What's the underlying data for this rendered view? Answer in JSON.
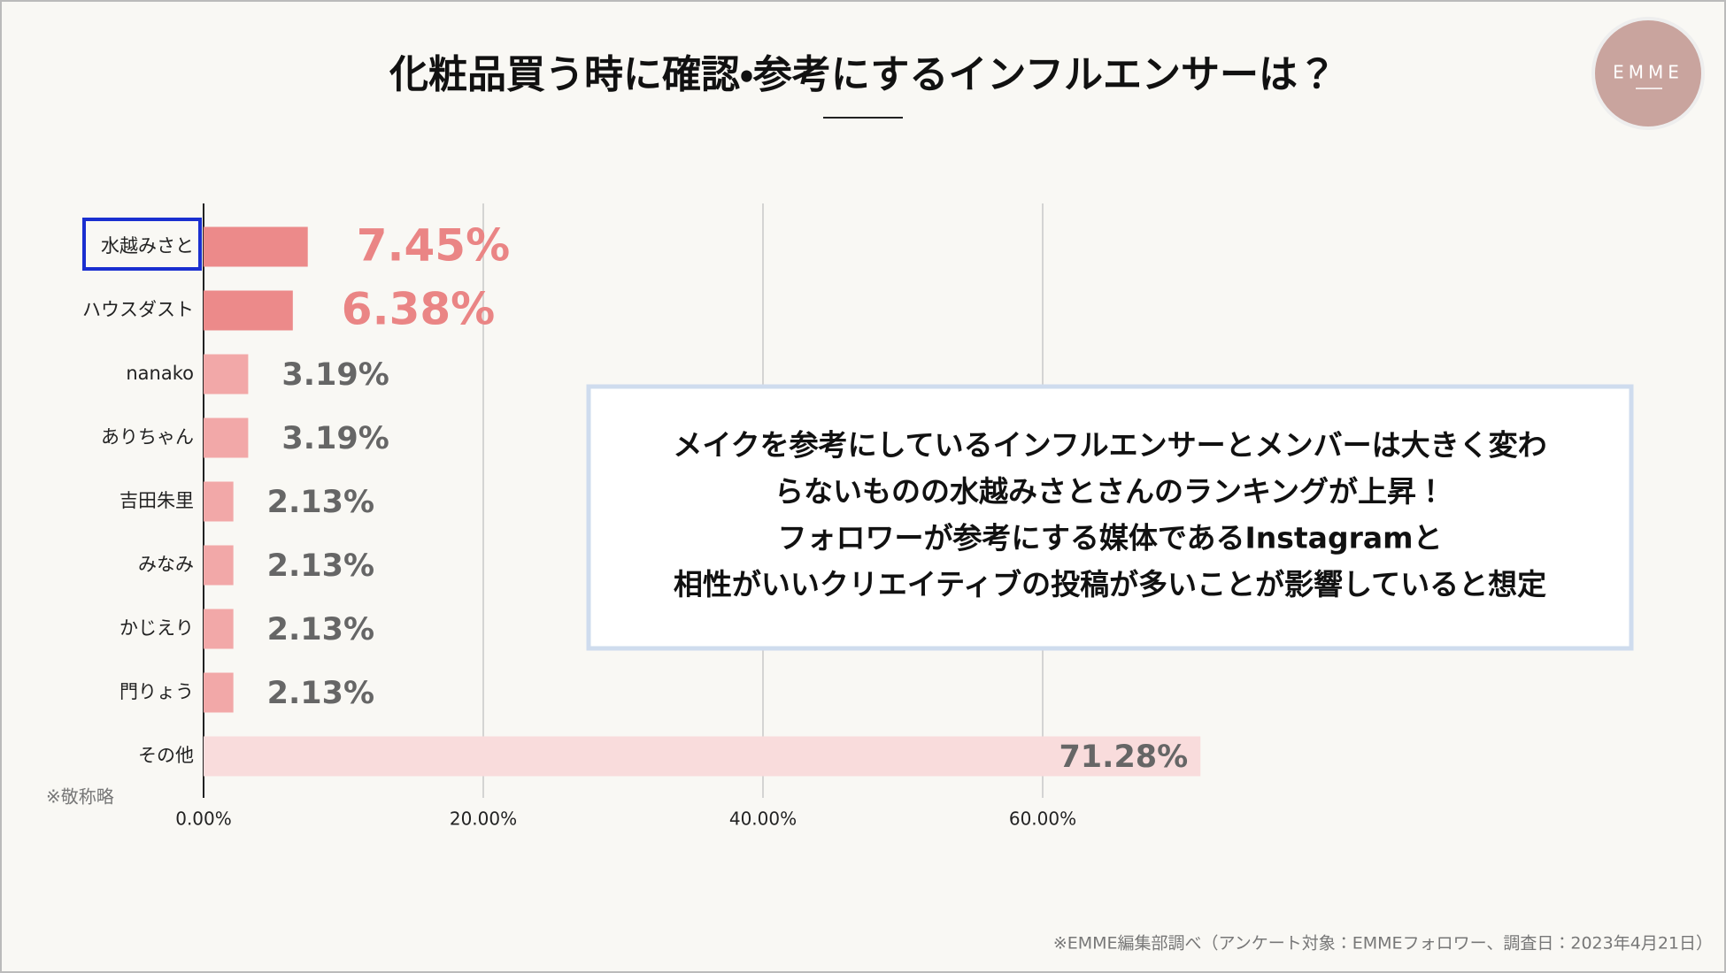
{
  "chart_data": {
    "type": "bar",
    "orientation": "horizontal",
    "title": "化粧品買う時に確認・参考にするインフルエンサーは？",
    "logo": "EMME",
    "categories": [
      "水越みさと",
      "ハウスダスト",
      "nanako",
      "ありちゃん",
      "吉田朱里",
      "みなみ",
      "かじえり",
      "門りょう",
      "その他"
    ],
    "values": [
      7.45,
      6.38,
      3.19,
      3.19,
      2.13,
      2.13,
      2.13,
      2.13,
      71.28
    ],
    "value_labels": [
      "7.45%",
      "6.38%",
      "3.19%",
      "3.19%",
      "2.13%",
      "2.13%",
      "2.13%",
      "2.13%",
      "71.28%"
    ],
    "colors": [
      "#ec8a8a",
      "#ec8a8a",
      "#f2a8a8",
      "#f2a8a8",
      "#f2a8a8",
      "#f2a8a8",
      "#f2a8a8",
      "#f2a8a8",
      "#f9dcdc"
    ],
    "label_colors": [
      "#ea8585",
      "#ea8585",
      "#666666",
      "#666666",
      "#666666",
      "#666666",
      "#666666",
      "#666666",
      "#666666"
    ],
    "xlim": [
      0,
      80
    ],
    "xticks": [
      {
        "value": 0,
        "label": "0.00%"
      },
      {
        "value": 20,
        "label": "20.00%"
      },
      {
        "value": 40,
        "label": "40.00%"
      },
      {
        "value": 60,
        "label": "60.00%"
      }
    ],
    "grid": true,
    "note": "※敬称略",
    "annotation": [
      "メイクを参考にしているインフルエンサーとメンバーは大きく変わ",
      "らないものの水越みさとさんのランキングが上昇！",
      "フォロワーが参考にする媒体であるInstagramと",
      "相性がいいクリエイティブの投稿が多いことが影響していると想定"
    ],
    "source": "※EMME編集部調べ（アンケート対象：EMMEフォロワー、調査日：2023年4月21日）"
  }
}
